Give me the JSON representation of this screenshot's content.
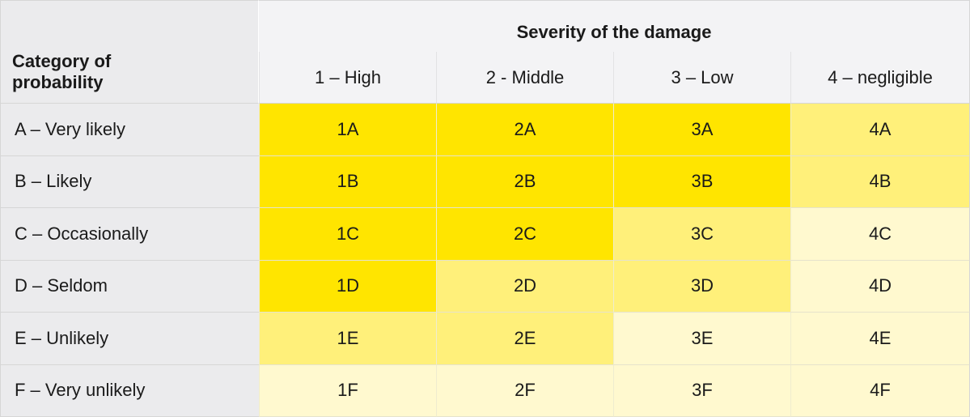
{
  "table": {
    "corner_label_line1": "Category of",
    "corner_label_line2": "probability",
    "severity_title": "Severity of the damage",
    "columns": [
      "1 – High",
      "2 - Middle",
      "3 – Low",
      "4 – negligible"
    ],
    "rows": [
      {
        "label": "A – Very likely",
        "cells": [
          "1A",
          "2A",
          "3A",
          "4A"
        ],
        "levels": [
          "high",
          "high",
          "high",
          "mid"
        ]
      },
      {
        "label": "B – Likely",
        "cells": [
          "1B",
          "2B",
          "3B",
          "4B"
        ],
        "levels": [
          "high",
          "high",
          "high",
          "mid"
        ]
      },
      {
        "label": "C – Occasionally",
        "cells": [
          "1C",
          "2C",
          "3C",
          "4C"
        ],
        "levels": [
          "high",
          "high",
          "mid",
          "low"
        ]
      },
      {
        "label": "D – Seldom",
        "cells": [
          "1D",
          "2D",
          "3D",
          "4D"
        ],
        "levels": [
          "high",
          "mid",
          "mid",
          "low"
        ]
      },
      {
        "label": "E – Unlikely",
        "cells": [
          "1E",
          "2E",
          "3E",
          "4E"
        ],
        "levels": [
          "mid",
          "mid",
          "low",
          "low"
        ]
      },
      {
        "label": "F – Very unlikely",
        "cells": [
          "1F",
          "2F",
          "3F",
          "4F"
        ],
        "levels": [
          "low",
          "low",
          "low",
          "low"
        ]
      }
    ]
  },
  "colors": {
    "high": "#ffe500",
    "mid": "#fff07a",
    "low": "#fff9cf",
    "header_bg": "#f3f3f5",
    "row_header_bg": "#ebebed"
  }
}
